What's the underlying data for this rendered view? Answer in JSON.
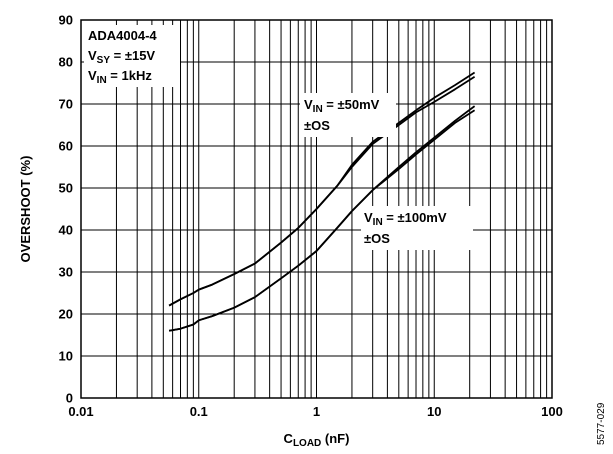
{
  "chart_data": {
    "type": "line",
    "xscale": "log",
    "xlim": [
      0.01,
      100
    ],
    "ylim": [
      0,
      90
    ],
    "grid": true,
    "x_ticks": [
      "0.01",
      "0.1",
      "1",
      "10",
      "100"
    ],
    "y_ticks": [
      "0",
      "10",
      "20",
      "30",
      "40",
      "50",
      "60",
      "70",
      "80",
      "90"
    ],
    "xlabel": {
      "main": "C",
      "sub": "LOAD",
      "unit": " (nF)"
    },
    "ylabel": "OVERSHOOT (%)",
    "series": [
      {
        "name": "VIN = ±50mV +OS",
        "x": [
          0.056,
          0.07,
          0.09,
          0.1,
          0.13,
          0.2,
          0.3,
          0.5,
          0.7,
          1.0,
          1.5,
          2.0,
          3.0,
          5.0,
          7.0,
          10.0,
          15.0,
          22.0
        ],
        "y": [
          22,
          23.5,
          25,
          25.8,
          27,
          29.5,
          32,
          37,
          40.5,
          45,
          50.5,
          55.5,
          61,
          65.5,
          68.5,
          71.5,
          74.5,
          77.5
        ]
      },
      {
        "name": "VIN = ±50mV −OS",
        "x": [
          0.056,
          0.07,
          0.09,
          0.1,
          0.13,
          0.2,
          0.3,
          0.5,
          0.7,
          1.0,
          1.5,
          2.0,
          3.0,
          5.0,
          7.0,
          10.0,
          15.0,
          22.0
        ],
        "y": [
          22,
          23.5,
          25,
          25.8,
          27,
          29.5,
          32,
          37,
          40.5,
          45,
          50.5,
          55,
          60.5,
          65,
          68,
          70.5,
          73.5,
          76.5
        ]
      },
      {
        "name": "VIN = ±100mV +OS",
        "x": [
          0.056,
          0.07,
          0.09,
          0.1,
          0.13,
          0.2,
          0.3,
          0.5,
          0.7,
          1.0,
          1.5,
          2.0,
          3.0,
          5.0,
          7.0,
          10.0,
          15.0,
          22.0
        ],
        "y": [
          16,
          16.5,
          17.5,
          18.5,
          19.5,
          21.5,
          24,
          28.5,
          31.5,
          35,
          40.5,
          44.5,
          49.5,
          55,
          58.5,
          62,
          66,
          69.5
        ]
      },
      {
        "name": "VIN = ±100mV −OS",
        "x": [
          0.056,
          0.07,
          0.09,
          0.1,
          0.13,
          0.2,
          0.3,
          0.5,
          0.7,
          1.0,
          1.5,
          2.0,
          3.0,
          5.0,
          7.0,
          10.0,
          15.0,
          22.0
        ],
        "y": [
          16,
          16.5,
          17.5,
          18.5,
          19.5,
          21.5,
          24,
          28.5,
          31.5,
          35,
          40.5,
          44.5,
          49.5,
          54.5,
          58,
          61.5,
          65.5,
          68.5
        ]
      }
    ],
    "annotations": {
      "conditions": {
        "line1": "ADA4004-4",
        "line2": {
          "main": "V",
          "sub": "SY",
          "rest": " = ±15V"
        },
        "line3": {
          "main": "V",
          "sub": "IN",
          "rest": " = 1kHz"
        }
      },
      "series_a": {
        "main": "V",
        "sub": "IN",
        "rest": " = ±50mV",
        "line2": "±OS"
      },
      "series_b": {
        "main": "V",
        "sub": "IN",
        "rest": " = ±100mV",
        "line2": "±OS"
      }
    },
    "figure_id": "5577-029"
  },
  "colors": {
    "line": "#000000",
    "grid": "#000000",
    "background": "#ffffff"
  }
}
